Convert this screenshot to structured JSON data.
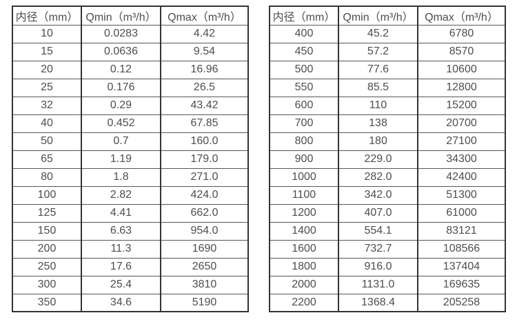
{
  "colors": {
    "background": "#ffffff",
    "border_vertical": "#333333",
    "border_horizontal": "#555555",
    "text": "#4d4d4d"
  },
  "tables": [
    {
      "name": "flow-spec-small-diameters",
      "headers": [
        "内径（mm）",
        "Qmin（m³/h）",
        "Qmax（m³/h）"
      ],
      "rows": [
        [
          "10",
          "0.0283",
          "4.42"
        ],
        [
          "15",
          "0.0636",
          "9.54"
        ],
        [
          "20",
          "0.12",
          "16.96"
        ],
        [
          "25",
          "0.176",
          "26.5"
        ],
        [
          "32",
          "0.29",
          "43.42"
        ],
        [
          "40",
          "0.452",
          "67.85"
        ],
        [
          "50",
          "0.7",
          "160.0"
        ],
        [
          "65",
          "1.19",
          "179.0"
        ],
        [
          "80",
          "1.8",
          "271.0"
        ],
        [
          "100",
          "2.82",
          "424.0"
        ],
        [
          "125",
          "4.41",
          "662.0"
        ],
        [
          "150",
          "6.63",
          "954.0"
        ],
        [
          "200",
          "11.3",
          "1690"
        ],
        [
          "250",
          "17.6",
          "2650"
        ],
        [
          "300",
          "25.4",
          "3810"
        ],
        [
          "350",
          "34.6",
          "5190"
        ]
      ]
    },
    {
      "name": "flow-spec-large-diameters",
      "headers": [
        "内径（mm）",
        "Qmin（m³/h）",
        "Qmax（m³/h）"
      ],
      "rows": [
        [
          "400",
          "45.2",
          "6780"
        ],
        [
          "450",
          "57.2",
          "8570"
        ],
        [
          "500",
          "77.6",
          "10600"
        ],
        [
          "550",
          "85.5",
          "12800"
        ],
        [
          "600",
          "110",
          "15200"
        ],
        [
          "700",
          "138",
          "20700"
        ],
        [
          "800",
          "180",
          "27100"
        ],
        [
          "900",
          "229.0",
          "34300"
        ],
        [
          "1000",
          "282.0",
          "42400"
        ],
        [
          "1100",
          "342.0",
          "51300"
        ],
        [
          "1200",
          "407.0",
          "61000"
        ],
        [
          "1400",
          "554.1",
          "83121"
        ],
        [
          "1600",
          "732.7",
          "108566"
        ],
        [
          "1800",
          "916.0",
          "137404"
        ],
        [
          "2000",
          "1131.0",
          "169635"
        ],
        [
          "2200",
          "1368.4",
          "205258"
        ]
      ]
    }
  ]
}
